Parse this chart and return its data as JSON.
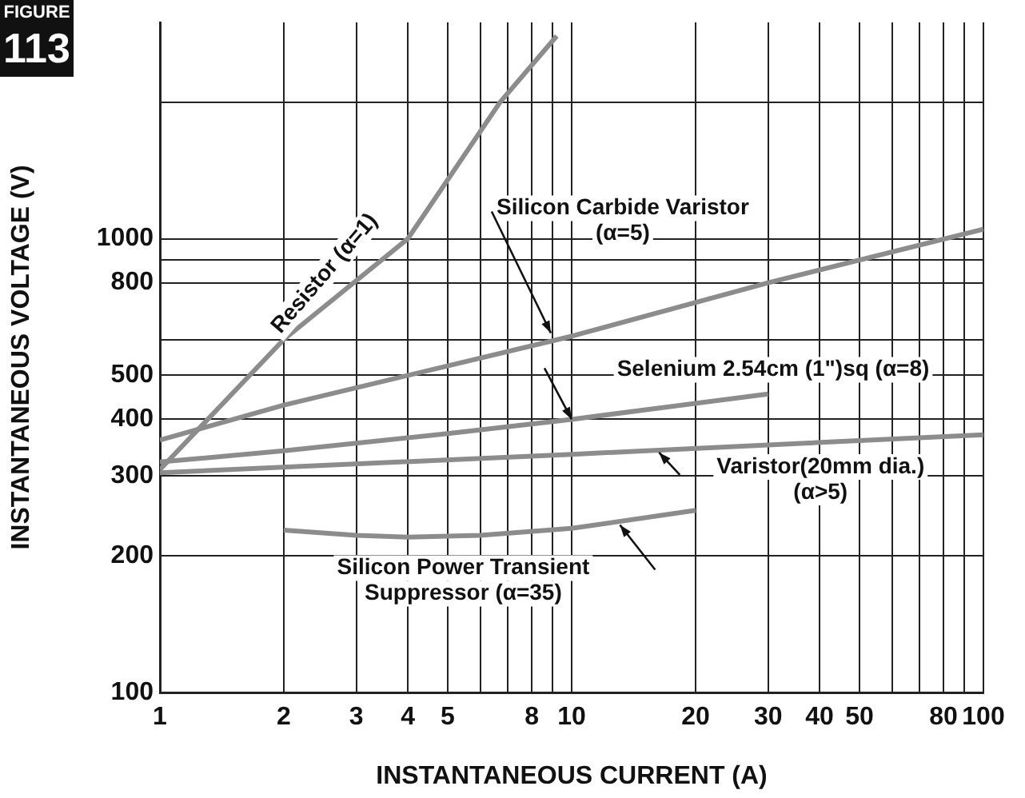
{
  "chart_data": {
    "type": "line",
    "title": "FIGURE 113",
    "xlabel": "INSTANTANEOUS CURRENT (A)",
    "ylabel": "INSTANTANEOUS VOLTAGE (V)",
    "log": "xy",
    "grid": true,
    "legend": false,
    "marker": "none",
    "line_style": "solid",
    "xlim": [
      1,
      100
    ],
    "xticks": [
      1,
      2,
      3,
      4,
      5,
      {
        "value": 6,
        "label": null
      },
      {
        "value": 7,
        "label": null
      },
      8,
      {
        "value": 9,
        "label": null
      },
      10,
      20,
      30,
      40,
      50,
      {
        "value": 60,
        "label": null
      },
      {
        "value": 70,
        "label": null
      },
      80,
      {
        "value": 90,
        "label": null
      },
      100
    ],
    "ylim": [
      100,
      3000
    ],
    "yticks": [
      100,
      200,
      300,
      400,
      500,
      {
        "value": 600,
        "label": null
      },
      800,
      {
        "value": 900,
        "label": null
      },
      1000,
      {
        "value": 2000,
        "label": null
      }
    ],
    "series": [
      {
        "color": "#8c8c8c",
        "x": [
          1,
          2,
          4,
          6.7,
          9.2
        ],
        "values": [
          310,
          600,
          1000,
          2000,
          2800
        ]
      },
      {
        "color": "#8c8c8c",
        "x": [
          1,
          2,
          10,
          30,
          100
        ],
        "values": [
          360,
          430,
          610,
          800,
          1050
        ]
      },
      {
        "color": "#8c8c8c",
        "x": [
          1,
          2,
          5,
          10,
          30
        ],
        "values": [
          322,
          341,
          372,
          400,
          455
        ]
      },
      {
        "color": "#8c8c8c",
        "x": [
          1,
          10,
          100
        ],
        "values": [
          305,
          335,
          370
        ]
      },
      {
        "color": "#8c8c8c",
        "x": [
          2,
          3,
          4,
          6,
          10,
          20
        ],
        "values": [
          228,
          222,
          220,
          222,
          230,
          252
        ]
      }
    ],
    "annotations": [
      {
        "text": "Resistor (α=1)",
        "x": 2.7,
        "y": 760
      },
      {
        "text": "Silicon Carbide Varistor\n(α=5)",
        "x": 8.9,
        "y": 620
      },
      {
        "text": "Selenium 2.54cm (1\")sq (α=8)",
        "x": 10,
        "y": 400
      },
      {
        "text": "Varistor(20mm dia.)\n(α>5)",
        "x": 16.3,
        "y": 338
      },
      {
        "text": "Silicon Power Transient\nSuppressor (α=35)",
        "x": 13.1,
        "y": 234
      }
    ]
  }
}
